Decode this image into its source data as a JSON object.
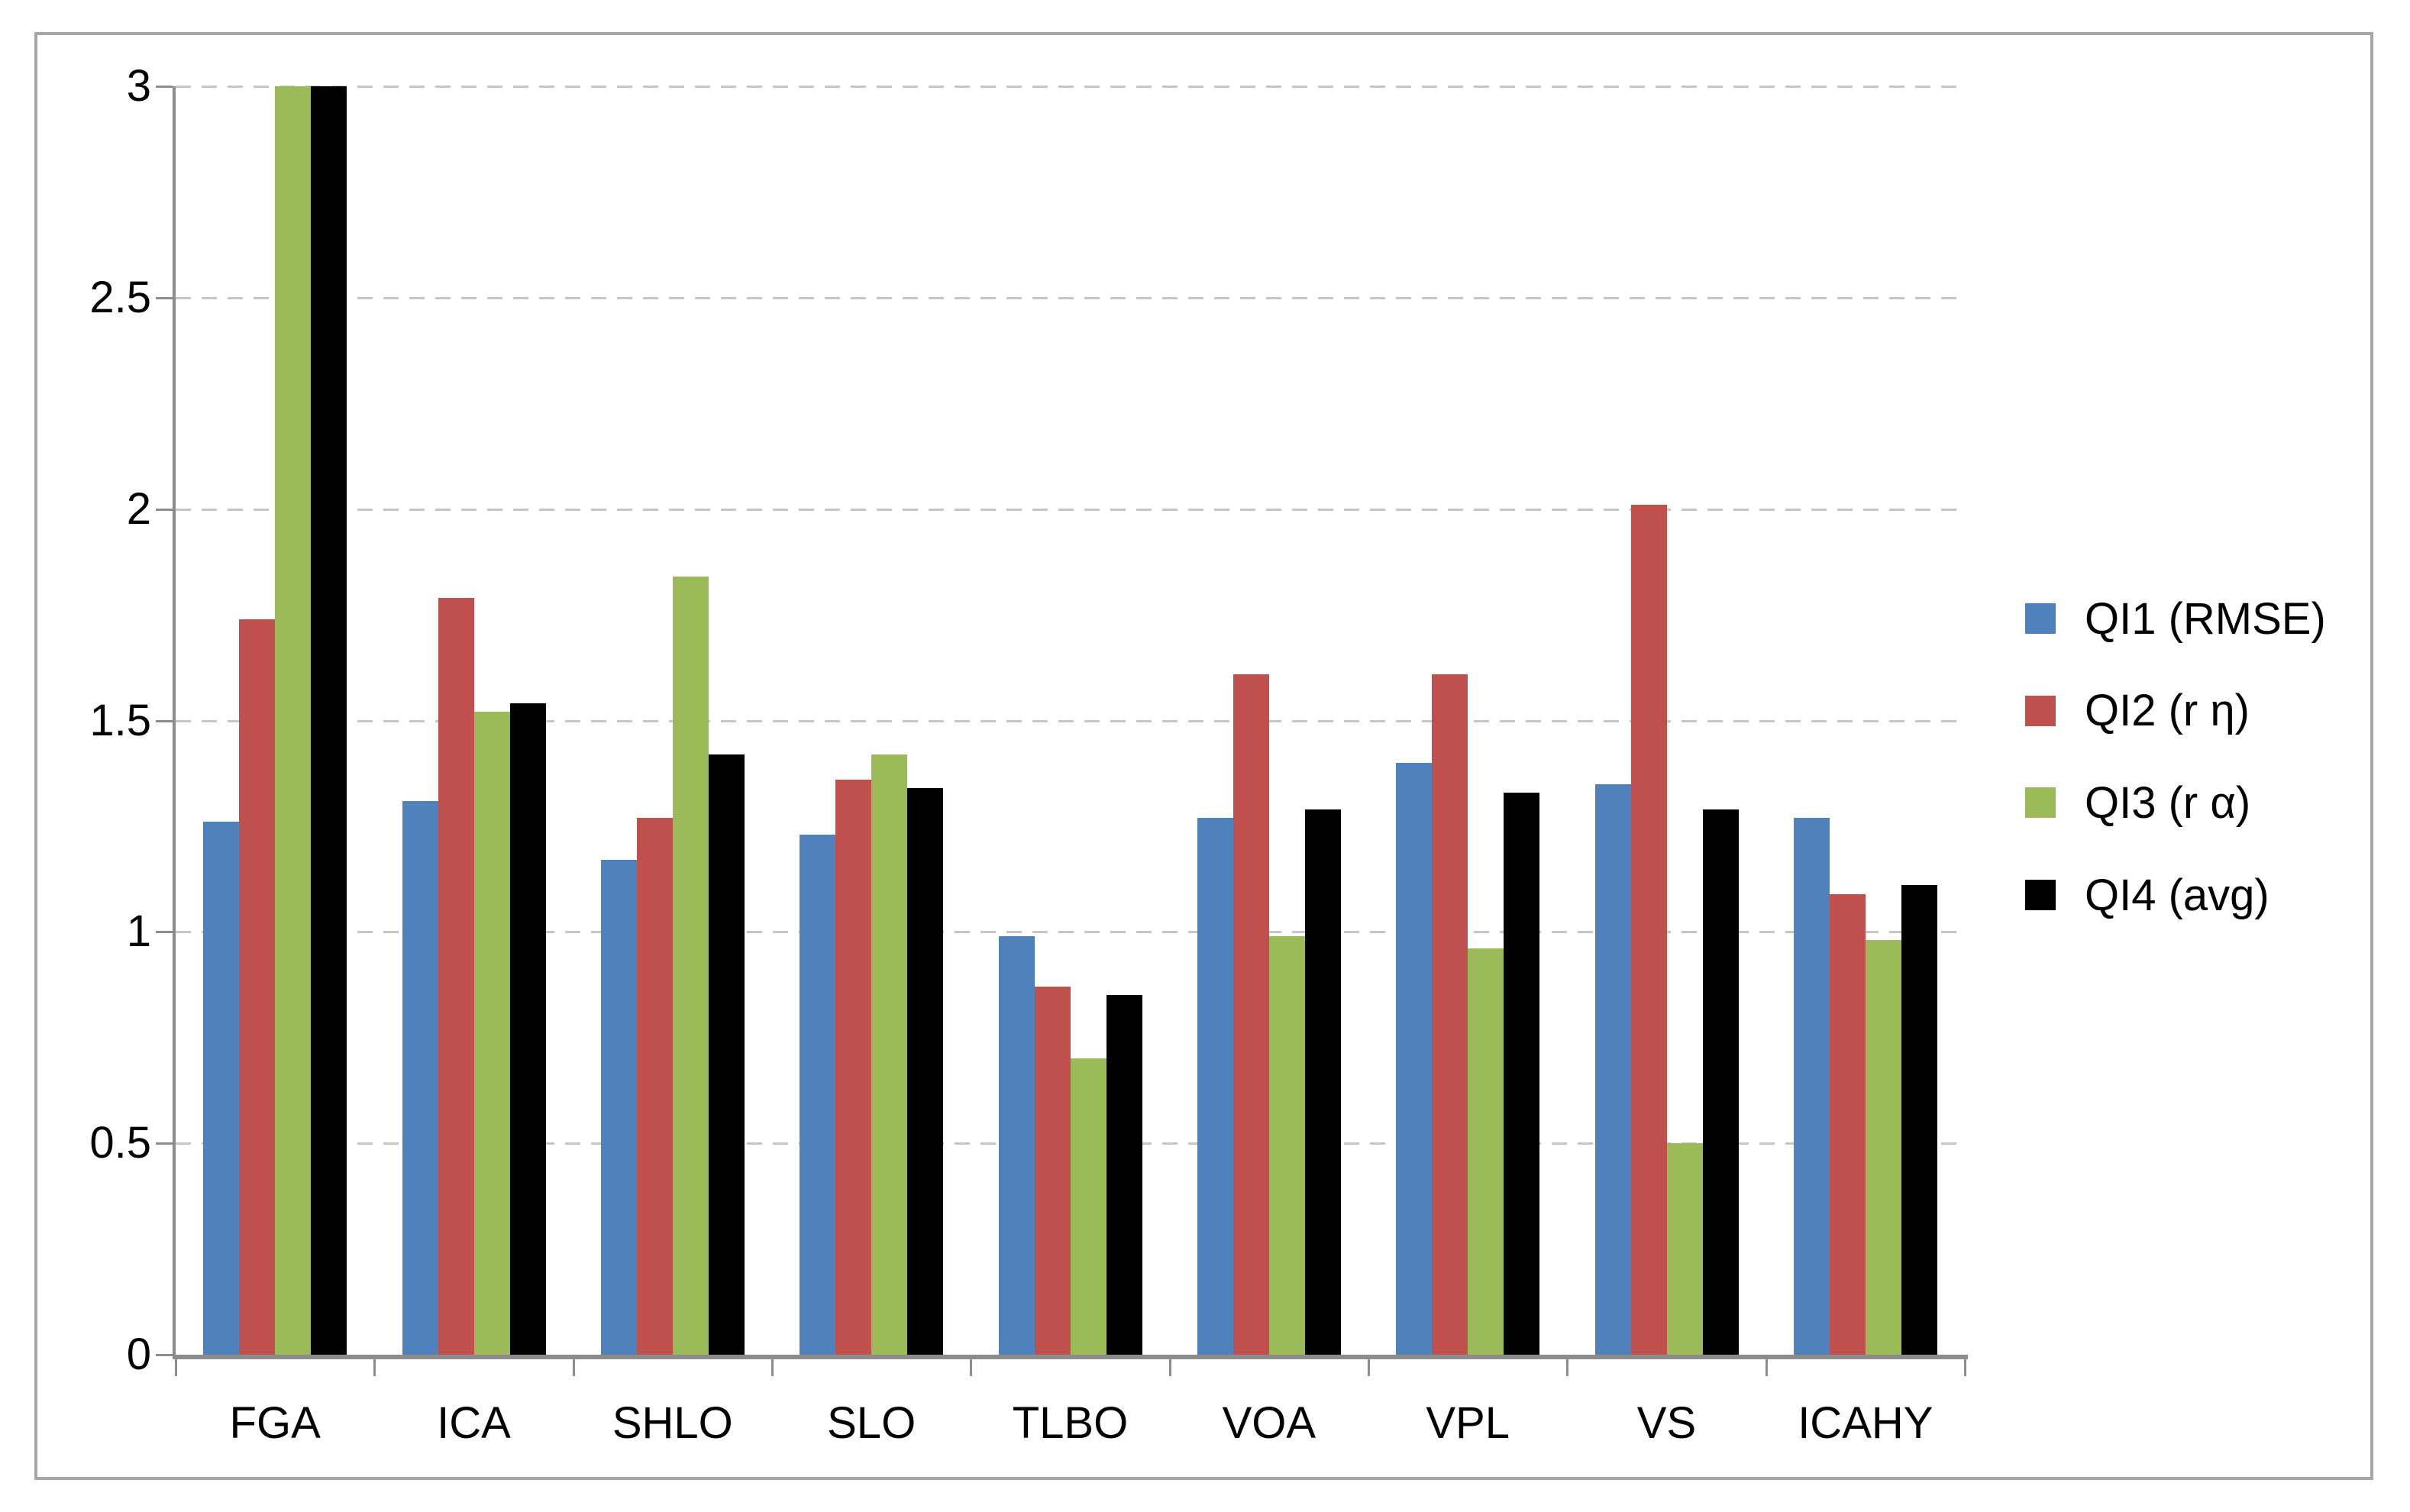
{
  "figure": {
    "background_color": "#FFFFFF",
    "border_color": "#A6A6A6"
  },
  "chart_data": {
    "type": "bar",
    "title": "",
    "xlabel": "",
    "ylabel": "",
    "categories": [
      "FGA",
      "ICA",
      "SHLO",
      "SLO",
      "TLBO",
      "VOA",
      "VPL",
      "VS",
      "ICAHY"
    ],
    "series": [
      {
        "name": "QI1 (RMSE)",
        "color": "#4F81BD",
        "values": [
          1.26,
          1.31,
          1.17,
          1.23,
          0.99,
          1.27,
          1.4,
          1.35,
          1.27
        ]
      },
      {
        "name": "QI2 (r η)",
        "color": "#C0504D",
        "values": [
          1.74,
          1.79,
          1.27,
          1.36,
          0.87,
          1.61,
          1.61,
          2.01,
          1.09
        ]
      },
      {
        "name": "QI3 (r α)",
        "color": "#9BBB59",
        "values": [
          3.0,
          1.52,
          1.84,
          1.42,
          0.7,
          0.99,
          0.96,
          0.5,
          0.98
        ]
      },
      {
        "name": "QI4 (avg)",
        "color": "#000000",
        "values": [
          3.0,
          1.54,
          1.42,
          1.34,
          0.85,
          1.29,
          1.33,
          1.29,
          1.11
        ]
      }
    ],
    "ylim": [
      0,
      3
    ],
    "ytick_step": 0.5,
    "ytick_labels": [
      "0",
      "0.5",
      "1",
      "1.5",
      "2",
      "2.5",
      "3"
    ],
    "grid": {
      "horizontal": true,
      "style": "dashed",
      "color": "#C6C6C6"
    },
    "axis_color": "#8C8C8C",
    "text_color": "#000000",
    "legend": {
      "position": "right",
      "entries": [
        "QI1 (RMSE)",
        "QI2 (r η)",
        "QI3 (r α)",
        "QI4 (avg)"
      ]
    }
  }
}
